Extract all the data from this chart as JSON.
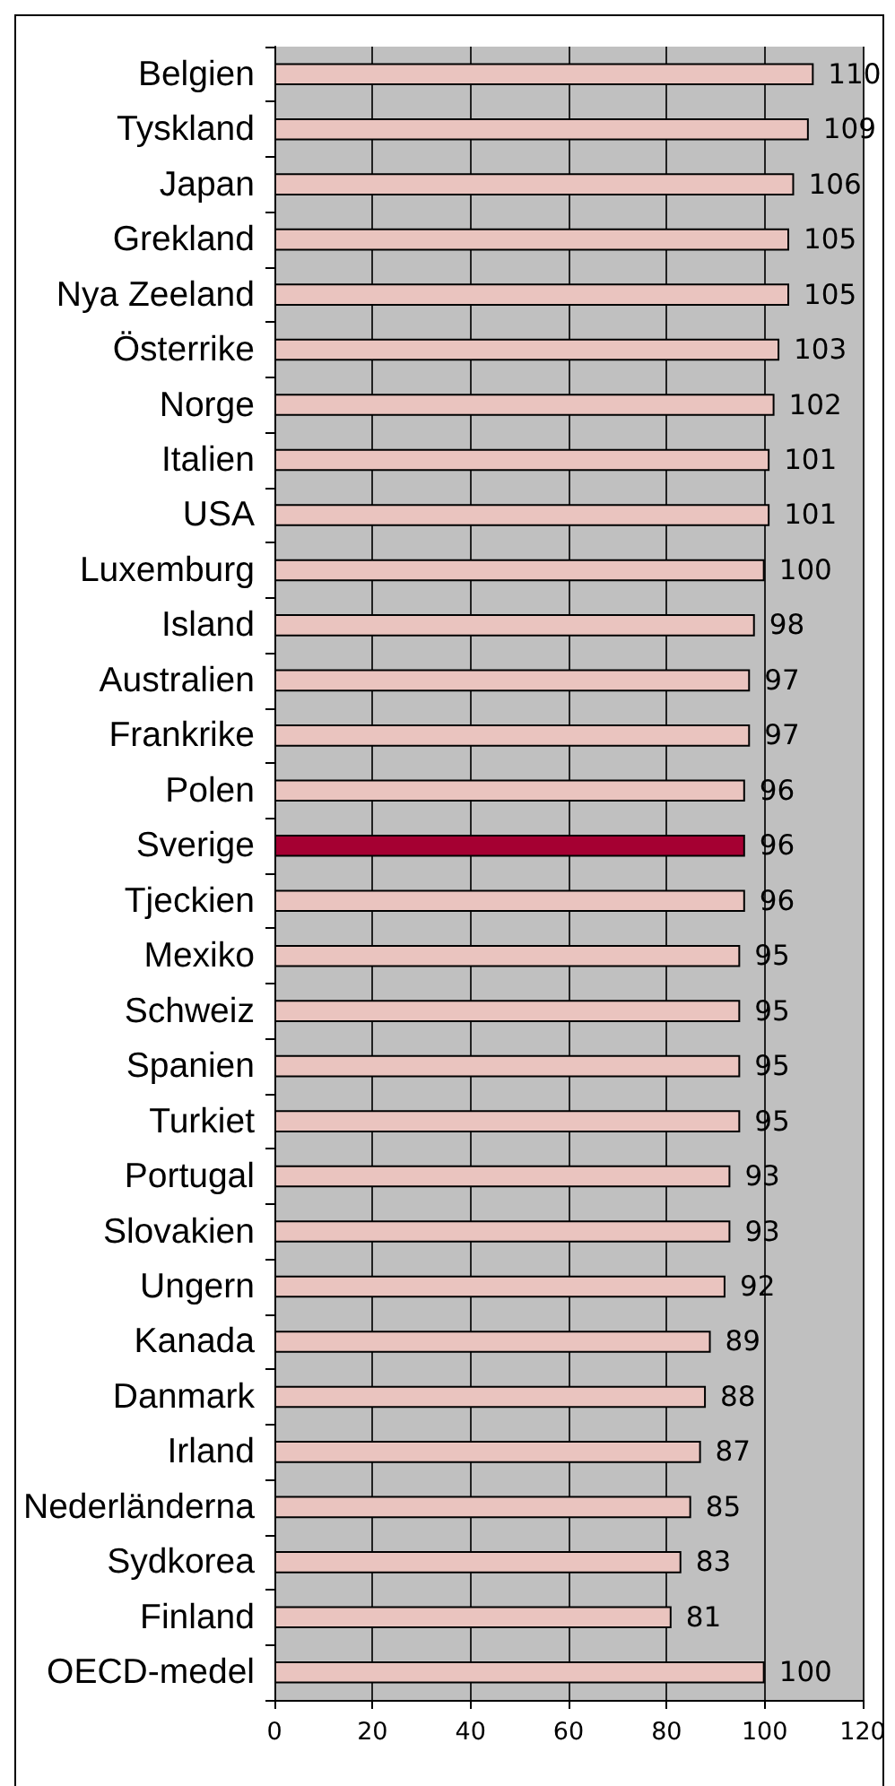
{
  "chart_data": {
    "type": "bar",
    "orientation": "horizontal",
    "categories": [
      "Belgien",
      "Tyskland",
      "Japan",
      "Grekland",
      "Nya Zeeland",
      "Österrike",
      "Norge",
      "Italien",
      "USA",
      "Luxemburg",
      "Island",
      "Australien",
      "Frankrike",
      "Polen",
      "Sverige",
      "Tjeckien",
      "Mexiko",
      "Schweiz",
      "Spanien",
      "Turkiet",
      "Portugal",
      "Slovakien",
      "Ungern",
      "Kanada",
      "Danmark",
      "Irland",
      "Nederländerna",
      "Sydkorea",
      "Finland",
      "OECD-medel"
    ],
    "values": [
      110,
      109,
      106,
      105,
      105,
      103,
      102,
      101,
      101,
      100,
      98,
      97,
      97,
      96,
      96,
      96,
      95,
      95,
      95,
      95,
      93,
      93,
      92,
      89,
      88,
      87,
      85,
      83,
      81,
      100
    ],
    "colors": [
      "#eac4bf",
      "#eac4bf",
      "#eac4bf",
      "#eac4bf",
      "#eac4bf",
      "#eac4bf",
      "#eac4bf",
      "#eac4bf",
      "#eac4bf",
      "#eac4bf",
      "#eac4bf",
      "#eac4bf",
      "#eac4bf",
      "#eac4bf",
      "#a50032",
      "#eac4bf",
      "#eac4bf",
      "#eac4bf",
      "#eac4bf",
      "#eac4bf",
      "#eac4bf",
      "#eac4bf",
      "#eac4bf",
      "#eac4bf",
      "#eac4bf",
      "#eac4bf",
      "#eac4bf",
      "#eac4bf",
      "#eac4bf",
      "#eac4bf"
    ],
    "xlim": [
      0,
      120
    ],
    "xticks": [
      0,
      20,
      40,
      60,
      80,
      100,
      120
    ],
    "grid": "x",
    "data_labels": true
  }
}
